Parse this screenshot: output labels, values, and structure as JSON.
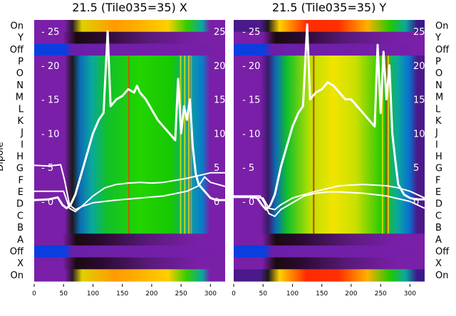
{
  "chart_data": [
    {
      "type": "heatmap",
      "title": "21.5 (Tile035=35) X",
      "ylabel": "Dipole",
      "x_ticks": [
        "0",
        "50",
        "100",
        "150",
        "200",
        "250",
        "300"
      ],
      "xlim": [
        0,
        325
      ],
      "overlay_ticks": [
        "25",
        "20",
        "15",
        "10",
        "5",
        "0"
      ],
      "overlay_ylim": [
        -3,
        27
      ],
      "row_labels": [
        "On",
        "Y",
        "Off",
        "P",
        "O",
        "N",
        "M",
        "L",
        "K",
        "J",
        "I",
        "H",
        "G",
        "F",
        "E",
        "D",
        "C",
        "B",
        "A",
        "Off",
        "X",
        "On"
      ],
      "series": [
        {
          "name": "",
          "x": [
            0,
            25,
            40,
            48,
            55,
            62,
            70,
            80,
            90,
            100,
            110,
            118,
            125,
            130,
            140,
            150,
            160,
            170,
            175,
            180,
            190,
            200,
            210,
            220,
            230,
            240,
            245,
            250,
            255,
            260,
            265,
            270,
            275,
            280,
            290,
            300,
            310,
            325
          ],
          "y": [
            0.2,
            0.3,
            0.6,
            -0.5,
            -1.0,
            -0.5,
            1,
            4,
            7,
            10,
            12,
            13,
            25,
            14,
            15,
            15.5,
            16.5,
            16,
            17,
            16,
            15,
            13.5,
            12,
            11,
            10,
            9,
            18,
            10,
            14,
            12,
            15,
            8,
            4,
            2.5,
            1.5,
            0.5,
            0.2,
            0.2
          ]
        },
        {
          "name": "",
          "x": [
            0,
            25,
            45,
            52,
            60,
            70,
            80,
            100,
            120,
            140,
            160,
            180,
            200,
            220,
            240,
            260,
            280,
            300,
            325
          ],
          "y": [
            5.3,
            5.2,
            5.4,
            3,
            -0.5,
            -1.2,
            -0.8,
            0.8,
            2,
            2.5,
            2.7,
            2.8,
            2.7,
            2.8,
            3.1,
            3.4,
            3.8,
            4.2,
            4.2
          ]
        },
        {
          "name": "",
          "x": [
            0,
            30,
            50,
            60,
            70,
            80,
            100,
            140,
            180,
            220,
            260,
            280,
            290,
            300,
            325
          ],
          "y": [
            1.5,
            1.5,
            1.5,
            -1.0,
            -1.5,
            -0.8,
            -0.2,
            0.2,
            0.5,
            0.8,
            1.5,
            2.3,
            3.6,
            2.8,
            2.2
          ]
        }
      ]
    },
    {
      "type": "heatmap",
      "title": "21.5 (Tile035=35) Y",
      "x_ticks": [
        "0",
        "50",
        "100",
        "150",
        "200",
        "250",
        "300"
      ],
      "xlim": [
        0,
        325
      ],
      "overlay_ticks": [
        "25",
        "20",
        "15",
        "10",
        "5",
        "0"
      ],
      "overlay_ylim": [
        -3,
        27
      ],
      "row_labels": [
        "On",
        "Y",
        "Off",
        "P",
        "O",
        "N",
        "M",
        "L",
        "K",
        "J",
        "I",
        "H",
        "G",
        "F",
        "E",
        "D",
        "C",
        "B",
        "A",
        "Off",
        "X",
        "On"
      ],
      "series": [
        {
          "name": "",
          "x": [
            0,
            25,
            40,
            48,
            55,
            62,
            70,
            80,
            90,
            100,
            110,
            118,
            125,
            130,
            140,
            150,
            160,
            170,
            180,
            190,
            200,
            210,
            220,
            230,
            240,
            245,
            250,
            255,
            260,
            265,
            270,
            275,
            280,
            290,
            300,
            310,
            325
          ],
          "y": [
            0.7,
            0.7,
            0.5,
            -0.5,
            -1.2,
            -0.6,
            1,
            5,
            8,
            11,
            13,
            14,
            26,
            15,
            16,
            16.5,
            17.5,
            17,
            16,
            15,
            15,
            14,
            13,
            12,
            11,
            23,
            13,
            22,
            15,
            20,
            10,
            6,
            2.5,
            1.0,
            0.5,
            0.3,
            0.3
          ]
        },
        {
          "name": "",
          "x": [
            0,
            25,
            45,
            52,
            60,
            70,
            80,
            100,
            120,
            140,
            160,
            180,
            200,
            220,
            240,
            260,
            280,
            300,
            325
          ],
          "y": [
            0.8,
            0.8,
            0.8,
            -0.2,
            -1.8,
            -2.2,
            -1.2,
            -0.2,
            0.8,
            1.2,
            1.4,
            1.4,
            1.3,
            1.2,
            1.0,
            0.8,
            0.4,
            0.0,
            -1.0
          ]
        },
        {
          "name": "",
          "x": [
            0,
            30,
            50,
            60,
            70,
            80,
            100,
            140,
            180,
            220,
            260,
            280,
            300,
            325
          ],
          "y": [
            0.6,
            0.6,
            0.5,
            -1.0,
            -1.2,
            -0.5,
            0.5,
            1.5,
            2.3,
            2.5,
            2.3,
            2.0,
            1.5,
            0.5
          ]
        }
      ]
    }
  ]
}
